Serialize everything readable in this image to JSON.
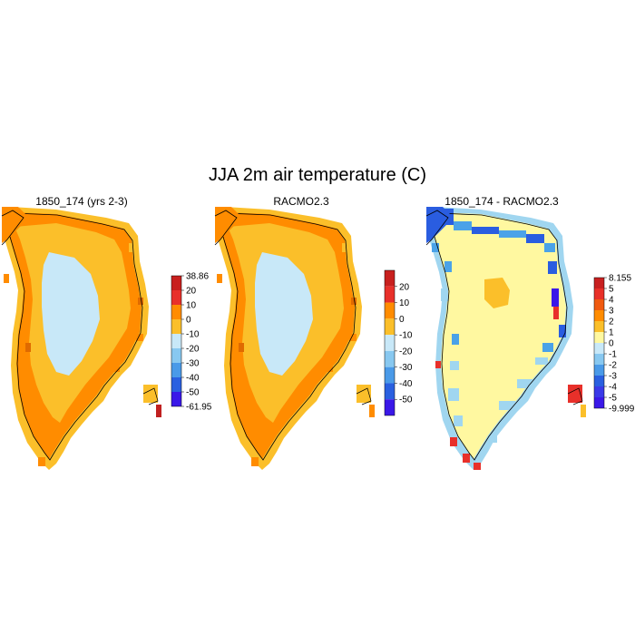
{
  "title": "JJA 2m air temperature (C)",
  "colors": {
    "deep_warm": "#e06a00",
    "warm": "#ff8c00",
    "mid": "#fbbf2a",
    "cold": "#c8e8f8",
    "pale": "#fff8a0",
    "lightblue": "#a0d6f0",
    "blue": "#4aa2e8",
    "deepblue": "#2a5de0",
    "violet": "#3a18e8",
    "red": "#e8302a",
    "darkred": "#c02020"
  },
  "chart_data": [
    {
      "type": "heatmap",
      "title": "1850_174 (yrs 2-3)",
      "colorbar": {
        "tick_labels": [
          "38.86",
          "20",
          "10",
          "0",
          "-10",
          "-20",
          "-30",
          "-40",
          "-50",
          "-61.95"
        ],
        "colors": [
          "#c8201e",
          "#e8302a",
          "#ff8c00",
          "#fbbf2a",
          "#c8e8f8",
          "#88c8f0",
          "#4a9ae8",
          "#2a60e0",
          "#3a18e8"
        ]
      }
    },
    {
      "type": "heatmap",
      "title": "RACMO2.3",
      "colorbar": {
        "tick_labels": [
          "20",
          "10",
          "0",
          "-10",
          "-20",
          "-30",
          "-40",
          "-50"
        ],
        "colors": [
          "#c8201e",
          "#e8302a",
          "#ff8c00",
          "#fbbf2a",
          "#c8e8f8",
          "#88c8f0",
          "#4a9ae8",
          "#2a60e0",
          "#3a18e8"
        ]
      }
    },
    {
      "type": "heatmap",
      "title": "1850_174 - RACMO2.3",
      "colorbar": {
        "tick_labels": [
          "8.155",
          "5",
          "4",
          "3",
          "2",
          "1",
          "0",
          "-1",
          "-2",
          "-3",
          "-4",
          "-5",
          "-9.999"
        ],
        "colors": [
          "#c82020",
          "#e83028",
          "#f05a10",
          "#ff8c00",
          "#fbbf2a",
          "#fff8a0",
          "#c8e8f8",
          "#88c8f0",
          "#4a9ae8",
          "#2a60e0",
          "#3a3ae8",
          "#3a18e8"
        ]
      }
    }
  ]
}
